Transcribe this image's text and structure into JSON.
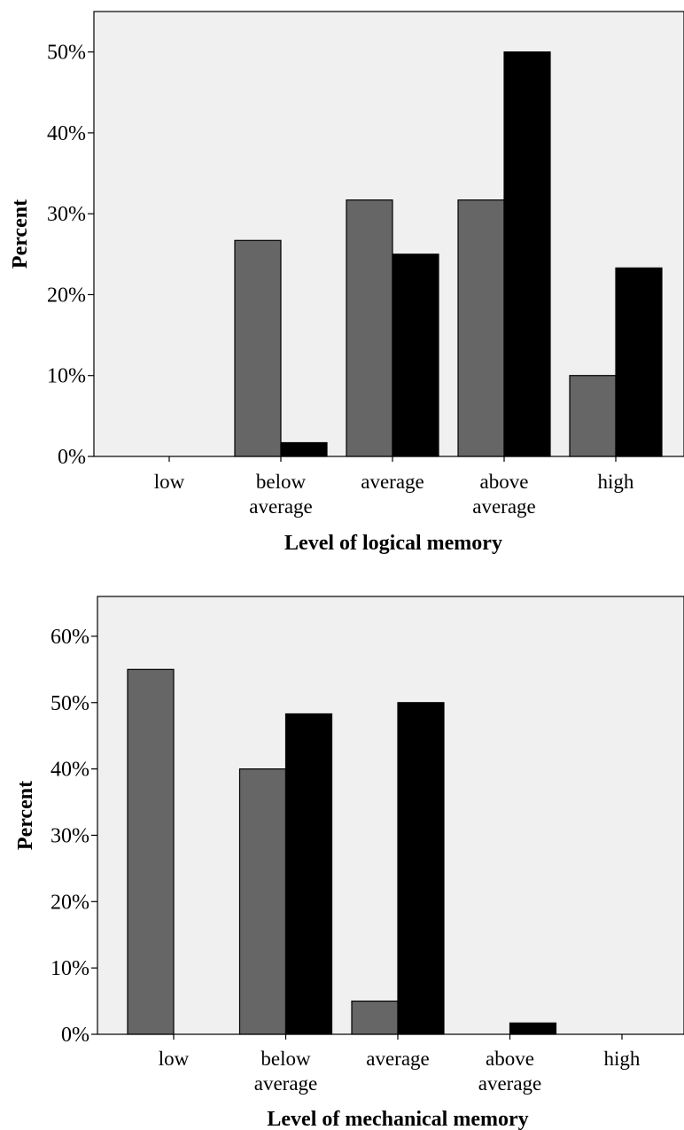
{
  "chart_data": [
    {
      "type": "bar",
      "title": "",
      "xlabel": "Level of logical memory",
      "ylabel": "Percent",
      "categories": [
        [
          "low"
        ],
        [
          "below",
          "average"
        ],
        [
          "average"
        ],
        [
          "above",
          "average"
        ],
        [
          "high"
        ]
      ],
      "ylim": [
        0,
        55
      ],
      "yticks": [
        0,
        10,
        20,
        30,
        40,
        50
      ],
      "tick_suffix": "%",
      "grid": false,
      "series": [
        {
          "color": "#666666",
          "values": [
            0,
            26.7,
            31.7,
            31.7,
            10.0
          ]
        },
        {
          "color": "#000000",
          "values": [
            0,
            1.7,
            25.0,
            50.0,
            23.3
          ]
        }
      ]
    },
    {
      "type": "bar",
      "title": "",
      "xlabel": "Level of mechanical memory",
      "ylabel": "Percent",
      "categories": [
        [
          "low"
        ],
        [
          "below",
          "average"
        ],
        [
          "average"
        ],
        [
          "above",
          "average"
        ],
        [
          "high"
        ]
      ],
      "ylim": [
        0,
        66
      ],
      "yticks": [
        0,
        10,
        20,
        30,
        40,
        50,
        60
      ],
      "tick_suffix": "%",
      "grid": false,
      "series": [
        {
          "color": "#666666",
          "values": [
            55.0,
            40.0,
            5.0,
            0,
            0
          ]
        },
        {
          "color": "#000000",
          "values": [
            0,
            48.3,
            50.0,
            1.7,
            0
          ]
        }
      ]
    }
  ]
}
